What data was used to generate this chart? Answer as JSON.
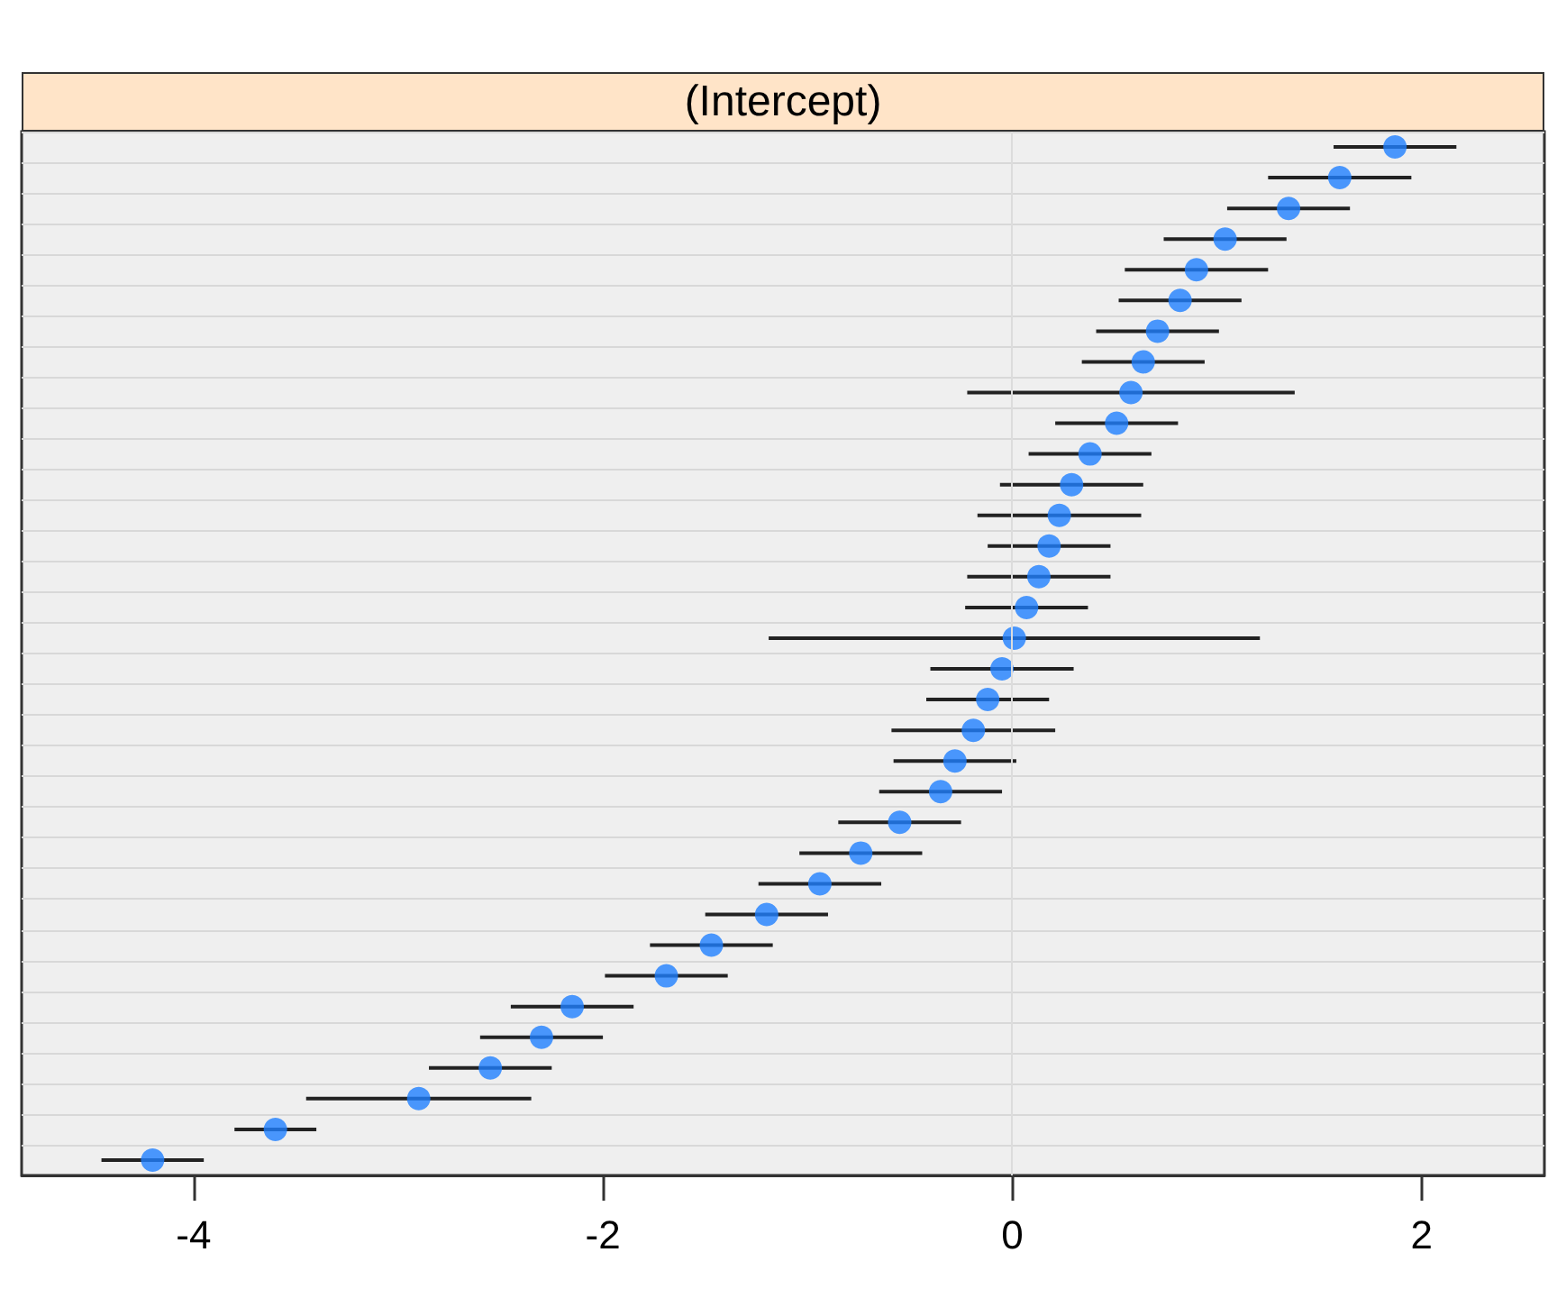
{
  "chart_data": {
    "type": "scatter",
    "title": "(Intercept)",
    "orientation": "horizontal",
    "categories": [
      null,
      null,
      null,
      null,
      null,
      null,
      null,
      null,
      null,
      null,
      null,
      null,
      null,
      null,
      null,
      null,
      null,
      null,
      null,
      null,
      null,
      null,
      null,
      null,
      null,
      null,
      null,
      null,
      null,
      null,
      null,
      null,
      null,
      null
    ],
    "series": [
      {
        "color": "#1f7fff",
        "values": [
          1.87,
          1.6,
          1.35,
          1.04,
          0.9,
          0.82,
          0.71,
          0.64,
          0.58,
          0.51,
          0.38,
          0.29,
          0.23,
          0.18,
          0.13,
          0.07,
          0.01,
          -0.05,
          -0.12,
          -0.19,
          -0.28,
          -0.35,
          -0.55,
          -0.74,
          -0.94,
          -1.2,
          -1.47,
          -1.69,
          -2.15,
          -2.3,
          -2.55,
          -2.9,
          -3.6,
          -4.2
        ],
        "errors": [
          0.3,
          0.35,
          0.3,
          0.3,
          0.35,
          0.3,
          0.3,
          0.3,
          0.8,
          0.3,
          0.3,
          0.35,
          0.4,
          0.3,
          0.35,
          0.3,
          1.2,
          0.35,
          0.3,
          0.4,
          0.3,
          0.3,
          0.3,
          0.3,
          0.3,
          0.3,
          0.3,
          0.3,
          0.3,
          0.3,
          0.3,
          0.55,
          0.2,
          0.25
        ]
      }
    ],
    "xlim": [
      -4.84,
      2.6
    ],
    "xticks": [
      -4,
      -2,
      0,
      2
    ],
    "grid": "y",
    "marker": "circle",
    "ref_lines": [
      {
        "axis": "x",
        "value": 0,
        "color": "#dcdcdc"
      }
    ]
  }
}
